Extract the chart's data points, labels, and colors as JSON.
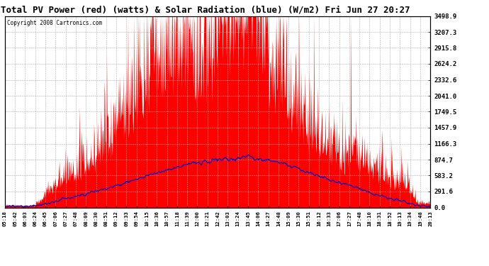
{
  "title": "Total PV Power (red) (watts) & Solar Radiation (blue) (W/m2) Fri Jun 27 20:27",
  "copyright": "Copyright 2008 Cartronics.com",
  "yticks": [
    0.0,
    291.6,
    583.2,
    874.7,
    1166.3,
    1457.9,
    1749.5,
    2041.0,
    2332.6,
    2624.2,
    2915.8,
    3207.3,
    3498.9
  ],
  "ymax": 3498.9,
  "ymin": 0.0,
  "bg_color": "#ffffff",
  "grid_color": "#aaaaaa",
  "red_color": "#ff0000",
  "blue_color": "#0000cc",
  "title_fontsize": 9,
  "xtick_labels": [
    "05:18",
    "05:42",
    "06:03",
    "06:24",
    "06:45",
    "07:06",
    "07:27",
    "07:48",
    "08:09",
    "08:30",
    "08:51",
    "09:12",
    "09:33",
    "09:54",
    "10:15",
    "10:36",
    "10:57",
    "11:18",
    "11:39",
    "12:00",
    "12:21",
    "12:42",
    "13:03",
    "13:24",
    "13:45",
    "14:06",
    "14:27",
    "14:48",
    "15:09",
    "15:30",
    "15:51",
    "16:12",
    "16:33",
    "17:06",
    "17:27",
    "17:48",
    "18:10",
    "18:31",
    "18:52",
    "19:13",
    "19:34",
    "19:48",
    "20:13"
  ]
}
